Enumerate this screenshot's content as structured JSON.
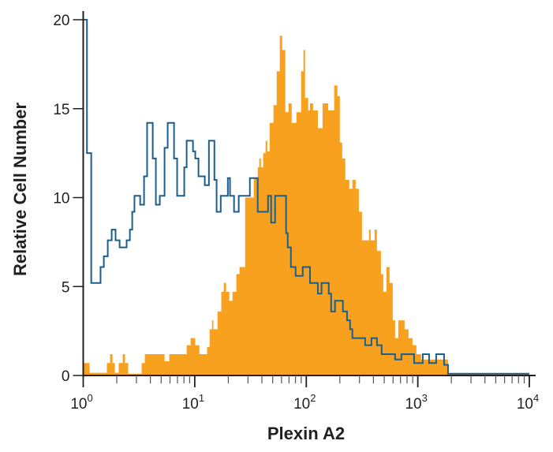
{
  "chart_data": {
    "type": "histogram",
    "title": "",
    "xlabel": "Plexin A2",
    "ylabel": "Relative Cell Number",
    "x_scale": "log",
    "xlim": [
      1,
      10000
    ],
    "ylim": [
      0,
      20
    ],
    "grid": false,
    "legend": "none",
    "x_ticks": [
      {
        "value": 1,
        "base": "10",
        "exp": "0"
      },
      {
        "value": 10,
        "base": "10",
        "exp": "1"
      },
      {
        "value": 100,
        "base": "10",
        "exp": "2"
      },
      {
        "value": 1000,
        "base": "10",
        "exp": "3"
      },
      {
        "value": 10000,
        "base": "10",
        "exp": "4"
      }
    ],
    "y_ticks": [
      {
        "value": 0,
        "label": "0"
      },
      {
        "value": 5,
        "label": "5"
      },
      {
        "value": 10,
        "label": "10"
      },
      {
        "value": 15,
        "label": "15"
      },
      {
        "value": 20,
        "label": "20"
      }
    ],
    "series": [
      {
        "style": "filled",
        "color": "#F7A11F",
        "x_end": 10000,
        "steps": [
          [
            1,
            0.7
          ],
          [
            1.14,
            0.15
          ],
          [
            1.63,
            0.7
          ],
          [
            1.74,
            1.2
          ],
          [
            1.83,
            0.7
          ],
          [
            1.92,
            0.15
          ],
          [
            2.08,
            0.7
          ],
          [
            2.26,
            1.2
          ],
          [
            2.37,
            0.7
          ],
          [
            2.53,
            0.1
          ],
          [
            3.34,
            0.7
          ],
          [
            3.57,
            1.2
          ],
          [
            5.36,
            0.8
          ],
          [
            5.91,
            1.2
          ],
          [
            8.46,
            1.7
          ],
          [
            9.18,
            2.1
          ],
          [
            10.1,
            1.7
          ],
          [
            11.0,
            1.2
          ],
          [
            12.9,
            1.6
          ],
          [
            13.6,
            2.6
          ],
          [
            14.3,
            3.1
          ],
          [
            14.7,
            2.6
          ],
          [
            16.0,
            3.6
          ],
          [
            17.3,
            4.7
          ],
          [
            18.2,
            5.2
          ],
          [
            19.1,
            4.7
          ],
          [
            20.4,
            4.2
          ],
          [
            21.8,
            4.7
          ],
          [
            23.6,
            5.7
          ],
          [
            25.2,
            6.1
          ],
          [
            28.3,
            10.0
          ],
          [
            33.8,
            11.1
          ],
          [
            36.7,
            11.7
          ],
          [
            37.9,
            12.2
          ],
          [
            39.2,
            11.7
          ],
          [
            41.1,
            12.5
          ],
          [
            43.2,
            13.2
          ],
          [
            44.7,
            12.6
          ],
          [
            46.9,
            14.2
          ],
          [
            50.8,
            15.2
          ],
          [
            54.3,
            17.1
          ],
          [
            57.9,
            19.1
          ],
          [
            60.8,
            18.3
          ],
          [
            64.9,
            14.8
          ],
          [
            69.3,
            15.3
          ],
          [
            74.0,
            14.2
          ],
          [
            81.6,
            14.8
          ],
          [
            89.9,
            17.1
          ],
          [
            94.4,
            18.3
          ],
          [
            97.5,
            15.6
          ],
          [
            104,
            14.9
          ],
          [
            108,
            15.3
          ],
          [
            115,
            14.9
          ],
          [
            127,
            13.9
          ],
          [
            140,
            15.3
          ],
          [
            157,
            14.9
          ],
          [
            178,
            16.3
          ],
          [
            190,
            15.7
          ],
          [
            200,
            13.1
          ],
          [
            210,
            12.2
          ],
          [
            224,
            11.0
          ],
          [
            243,
            10.5
          ],
          [
            259,
            11.0
          ],
          [
            277,
            10.5
          ],
          [
            296,
            9.2
          ],
          [
            316,
            7.6
          ],
          [
            365,
            8.2
          ],
          [
            378,
            7.6
          ],
          [
            410,
            8.2
          ],
          [
            430,
            7.0
          ],
          [
            467,
            5.7
          ],
          [
            490,
            4.7
          ],
          [
            523,
            6.1
          ],
          [
            558,
            5.2
          ],
          [
            596,
            3.1
          ],
          [
            626,
            2.1
          ],
          [
            668,
            3.1
          ],
          [
            761,
            2.6
          ],
          [
            826,
            2.1
          ],
          [
            896,
            1.7
          ],
          [
            972,
            1.2
          ],
          [
            1072,
            0.9
          ],
          [
            1866,
            0.1
          ]
        ]
      },
      {
        "style": "outline",
        "color": "#1B5E8C",
        "x_end": 10000,
        "steps": [
          [
            1,
            20.0
          ],
          [
            1.08,
            12.5
          ],
          [
            1.18,
            5.2
          ],
          [
            1.43,
            6.1
          ],
          [
            1.53,
            6.7
          ],
          [
            1.66,
            7.6
          ],
          [
            1.8,
            8.2
          ],
          [
            1.95,
            7.6
          ],
          [
            2.12,
            7.2
          ],
          [
            2.45,
            7.6
          ],
          [
            2.62,
            8.2
          ],
          [
            2.75,
            9.2
          ],
          [
            2.88,
            10.1
          ],
          [
            3.24,
            9.6
          ],
          [
            3.51,
            11.2
          ],
          [
            3.74,
            14.2
          ],
          [
            4.2,
            12.2
          ],
          [
            4.48,
            9.6
          ],
          [
            4.86,
            10.1
          ],
          [
            5.36,
            12.8
          ],
          [
            5.72,
            14.2
          ],
          [
            6.52,
            12.2
          ],
          [
            6.95,
            10.1
          ],
          [
            8.05,
            11.7
          ],
          [
            8.46,
            13.2
          ],
          [
            9.64,
            12.6
          ],
          [
            10.1,
            12.2
          ],
          [
            10.8,
            11.2
          ],
          [
            12.3,
            10.7
          ],
          [
            13.4,
            13.2
          ],
          [
            15.0,
            11.0
          ],
          [
            15.7,
            9.2
          ],
          [
            17.1,
            10.1
          ],
          [
            19.8,
            11.1
          ],
          [
            20.7,
            10.1
          ],
          [
            22.5,
            9.2
          ],
          [
            24.8,
            10.1
          ],
          [
            31.2,
            11.1
          ],
          [
            36.7,
            9.2
          ],
          [
            45.4,
            10.1
          ],
          [
            48.4,
            8.6
          ],
          [
            52.5,
            10.1
          ],
          [
            65.9,
            8.0
          ],
          [
            68.2,
            7.2
          ],
          [
            72.8,
            6.1
          ],
          [
            80.2,
            5.6
          ],
          [
            92.9,
            6.1
          ],
          [
            108,
            5.2
          ],
          [
            127,
            4.6
          ],
          [
            137,
            5.2
          ],
          [
            159,
            4.6
          ],
          [
            167,
            3.6
          ],
          [
            181,
            4.2
          ],
          [
            213,
            3.6
          ],
          [
            232,
            3.1
          ],
          [
            247,
            2.6
          ],
          [
            259,
            2.1
          ],
          [
            337,
            1.7
          ],
          [
            384,
            2.1
          ],
          [
            430,
            1.7
          ],
          [
            474,
            1.2
          ],
          [
            626,
            0.9
          ],
          [
            713,
            1.2
          ],
          [
            926,
            0.7
          ],
          [
            1107,
            1.2
          ],
          [
            1262,
            0.7
          ],
          [
            1461,
            1.2
          ],
          [
            1720,
            0.6
          ],
          [
            1866,
            0.1
          ]
        ]
      }
    ]
  }
}
